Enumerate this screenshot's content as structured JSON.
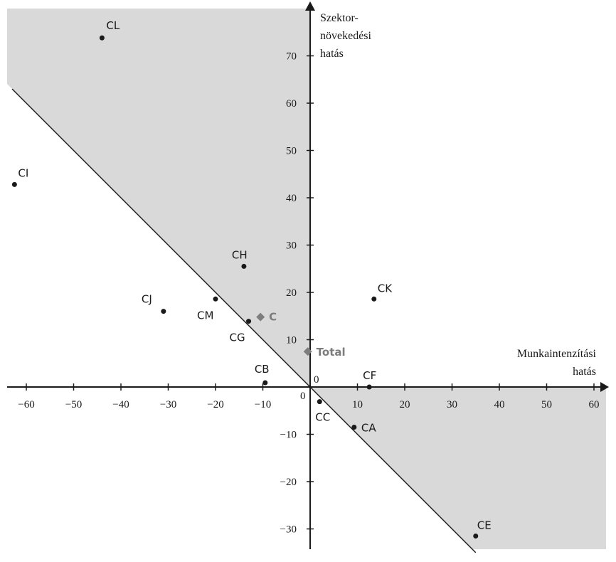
{
  "chart_data": {
    "type": "scatter",
    "xlabel_lines": [
      "Munkaintenzítási",
      "hatás"
    ],
    "ylabel_lines": [
      "Szektor-",
      "növekedési",
      "hatás"
    ],
    "xlim": [
      -63,
      62
    ],
    "ylim": [
      -34,
      80
    ],
    "x_ticks": [
      -60,
      -50,
      -40,
      -30,
      -20,
      -10,
      10,
      20,
      30,
      40,
      50,
      60
    ],
    "y_ticks": [
      70,
      60,
      50,
      40,
      30,
      20,
      10,
      -10,
      -20,
      -30
    ],
    "origin_labels": [
      "0",
      "0"
    ],
    "diagonal_line": {
      "description": "y = -x",
      "from": [
        -63,
        63
      ],
      "to": [
        35,
        -35
      ]
    },
    "shaded_region": "upper-left and lower-right of the diagonal line",
    "points": [
      {
        "label": "CL",
        "x": -44,
        "y": 73.8
      },
      {
        "label": "CI",
        "x": -62.5,
        "y": 42.8
      },
      {
        "label": "CH",
        "x": -14,
        "y": 25.5
      },
      {
        "label": "CJ",
        "x": -31,
        "y": 16
      },
      {
        "label": "CM",
        "x": -20,
        "y": 18.6
      },
      {
        "label": "CG",
        "x": -13,
        "y": 13.9
      },
      {
        "label": "CK",
        "x": 13.5,
        "y": 18.6
      },
      {
        "label": "CB",
        "x": -9.5,
        "y": 0.9
      },
      {
        "label": "CF",
        "x": 12.5,
        "y": 0
      },
      {
        "label": "CC",
        "x": 2,
        "y": -3.1
      },
      {
        "label": "CA",
        "x": 9.3,
        "y": -8.5
      },
      {
        "label": "CE",
        "x": 35,
        "y": -31.5
      }
    ],
    "highlighted_points": [
      {
        "label": "C",
        "x": -10.5,
        "y": 14.8
      },
      {
        "label": "Total",
        "x": -0.5,
        "y": 7.5
      }
    ],
    "colors": {
      "shade": "#d9d9da",
      "point": "#1a1a1a",
      "highlight": "#7d7d7d",
      "axis": "#1a1a1a"
    }
  }
}
